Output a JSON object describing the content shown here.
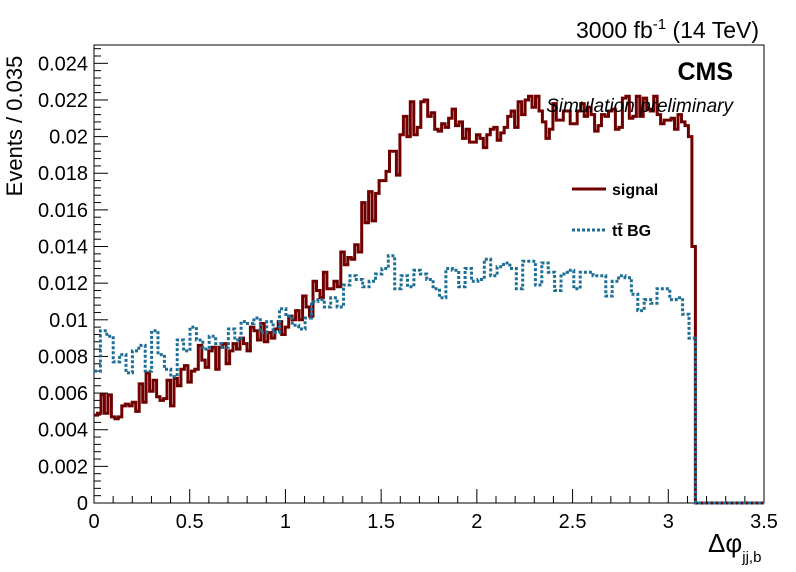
{
  "header": {
    "lumi_prefix": "3000 fb",
    "lumi_exp": "-1",
    "lumi_suffix": " (14 TeV)"
  },
  "labels": {
    "cms": "CMS",
    "simulation": "Simulation preliminary"
  },
  "colors": {
    "signal": "#700000",
    "background": "#1f6e96",
    "frame": "#000000"
  },
  "chart_data": {
    "type": "line",
    "title": "",
    "xlabel_main": "Δφ",
    "xlabel_sub": "jj,b",
    "ylabel": "Events / 0.035",
    "xlim": [
      0,
      3.5
    ],
    "ylim": [
      0,
      0.025
    ],
    "bin_width": 0.035,
    "x_ticks": [
      "0",
      "0.5",
      "1",
      "1.5",
      "2",
      "2.5",
      "3",
      "3.5"
    ],
    "y_ticks": [
      "0",
      "0.002",
      "0.004",
      "0.006",
      "0.008",
      "0.01",
      "0.012",
      "0.014",
      "0.016",
      "0.018",
      "0.02",
      "0.022",
      "0.024"
    ],
    "legend_position": "upper-right",
    "series": [
      {
        "name": "signal",
        "style": "solid",
        "values": [
          0.0048,
          0.0049,
          0.0059,
          0.0049,
          0.0059,
          0.0047,
          0.0046,
          0.0047,
          0.0053,
          0.0054,
          0.0053,
          0.0055,
          0.005,
          0.0065,
          0.0055,
          0.0071,
          0.0061,
          0.0067,
          0.0058,
          0.0056,
          0.0057,
          0.0067,
          0.0053,
          0.0068,
          0.0064,
          0.0073,
          0.0075,
          0.0066,
          0.0072,
          0.0073,
          0.0086,
          0.0078,
          0.0074,
          0.0083,
          0.0085,
          0.0073,
          0.0085,
          0.0087,
          0.0076,
          0.0083,
          0.0087,
          0.0084,
          0.009,
          0.0087,
          0.0083,
          0.0096,
          0.0094,
          0.0089,
          0.0098,
          0.0088,
          0.0093,
          0.009,
          0.0095,
          0.0099,
          0.0092,
          0.0096,
          0.0102,
          0.01,
          0.0105,
          0.01,
          0.0113,
          0.0107,
          0.0102,
          0.0121,
          0.0116,
          0.0112,
          0.0126,
          0.0117,
          0.0117,
          0.0121,
          0.0118,
          0.0137,
          0.013,
          0.0134,
          0.0133,
          0.0141,
          0.0137,
          0.0164,
          0.0153,
          0.017,
          0.0154,
          0.0169,
          0.0176,
          0.0176,
          0.0181,
          0.0192,
          0.0192,
          0.0179,
          0.0201,
          0.0211,
          0.02,
          0.0219,
          0.0201,
          0.0205,
          0.0219,
          0.022,
          0.0211,
          0.0213,
          0.0204,
          0.0203,
          0.0207,
          0.0205,
          0.021,
          0.0215,
          0.0206,
          0.0208,
          0.0199,
          0.0204,
          0.0197,
          0.0197,
          0.0201,
          0.0199,
          0.0194,
          0.0201,
          0.0204,
          0.0205,
          0.0198,
          0.0202,
          0.0205,
          0.0211,
          0.0214,
          0.0205,
          0.0219,
          0.0212,
          0.022,
          0.0222,
          0.0216,
          0.0222,
          0.0214,
          0.0208,
          0.0199,
          0.0204,
          0.0218,
          0.0209,
          0.0209,
          0.0214,
          0.0214,
          0.0207,
          0.0207,
          0.0214,
          0.0218,
          0.0211,
          0.0216,
          0.0212,
          0.0203,
          0.0206,
          0.0212,
          0.0211,
          0.0214,
          0.0215,
          0.0204,
          0.0205,
          0.0221,
          0.0222,
          0.021,
          0.0211,
          0.0222,
          0.0211,
          0.0221,
          0.0215,
          0.0214,
          0.0222,
          0.0212,
          0.0207,
          0.0209,
          0.0209,
          0.021,
          0.0204,
          0.0212,
          0.0208,
          0.0206,
          0.02,
          0.014
        ]
      },
      {
        "name": "tt̄ BG",
        "style": "dotted",
        "values": [
          0.0072,
          0.0094,
          0.0091,
          0.0077,
          0.0081,
          0.0071,
          0.0083,
          0.0086,
          0.0072,
          0.0094,
          0.0081,
          0.0073,
          0.0069,
          0.0089,
          0.0083,
          0.0096,
          0.0089,
          0.0084,
          0.0091,
          0.0087,
          0.0085,
          0.0095,
          0.0089,
          0.0099,
          0.0098,
          0.0101,
          0.0093,
          0.0099,
          0.0093,
          0.0106,
          0.0102,
          0.0097,
          0.0095,
          0.0101,
          0.011,
          0.0111,
          0.0107,
          0.0112,
          0.0107,
          0.0119,
          0.0124,
          0.0122,
          0.0118,
          0.0121,
          0.0125,
          0.0128,
          0.0135,
          0.0117,
          0.0124,
          0.0118,
          0.0127,
          0.0125,
          0.0122,
          0.0117,
          0.0112,
          0.0128,
          0.0127,
          0.0118,
          0.0128,
          0.0121,
          0.0122,
          0.0133,
          0.0124,
          0.0129,
          0.0131,
          0.0128,
          0.0117,
          0.0132,
          0.0132,
          0.0119,
          0.0131,
          0.0126,
          0.0116,
          0.0125,
          0.0127,
          0.0117,
          0.0126,
          0.0126,
          0.0124,
          0.0124,
          0.0113,
          0.0121,
          0.0124,
          0.0123,
          0.0114,
          0.0105,
          0.0111,
          0.0109,
          0.0117,
          0.0117,
          0.0111,
          0.0112,
          0.0103,
          0.009
        ],
        "x_start": 0.0
      }
    ]
  }
}
